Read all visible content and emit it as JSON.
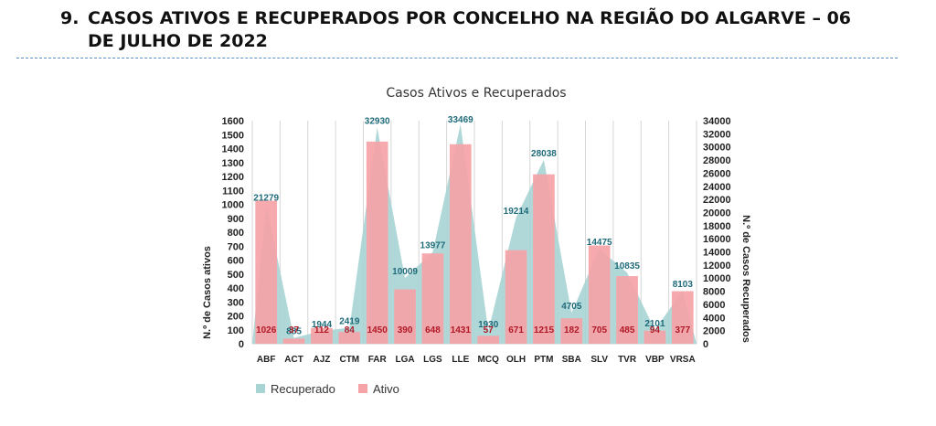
{
  "page": {
    "section_number": "9.",
    "heading_line1": "CASOS ATIVOS E RECUPERADOS POR CONCELHO NA REGIÃO DO ALGARVE – 06",
    "heading_line2": "DE JULHO DE 2022"
  },
  "chart_data": {
    "type": "bar",
    "title": "Casos Ativos e Recuperados",
    "categories": [
      "ABF",
      "ACT",
      "AJZ",
      "CTM",
      "FAR",
      "LGA",
      "LGS",
      "LLE",
      "MCQ",
      "OLH",
      "PTM",
      "SBA",
      "SLV",
      "TVR",
      "VBP",
      "VRSA"
    ],
    "series": [
      {
        "name": "Recuperado",
        "kind": "area",
        "axis": "right",
        "color": "#a9d4d4",
        "values": [
          21279,
          885,
          1944,
          2419,
          32930,
          10009,
          13977,
          33469,
          1930,
          19214,
          28038,
          4705,
          14475,
          10835,
          2101,
          8103
        ]
      },
      {
        "name": "Ativo",
        "kind": "bar",
        "axis": "left",
        "color": "#f5a3a7",
        "values": [
          1026,
          37,
          112,
          84,
          1450,
          390,
          648,
          1431,
          57,
          671,
          1215,
          182,
          705,
          485,
          94,
          377
        ]
      }
    ],
    "ylabel": "N.º de Casos ativos",
    "ylabel_right": "N.º de Casos Recuperados",
    "ylim": [
      0,
      1600
    ],
    "yticks": [
      0,
      100,
      200,
      300,
      400,
      500,
      600,
      700,
      800,
      900,
      1000,
      1100,
      1200,
      1300,
      1400,
      1500,
      1600
    ],
    "ylim_right": [
      0,
      34000
    ],
    "yticks_right": [
      0,
      2000,
      4000,
      6000,
      8000,
      10000,
      12000,
      14000,
      16000,
      18000,
      20000,
      22000,
      24000,
      26000,
      28000,
      30000,
      32000,
      34000
    ],
    "grid": "vertical",
    "legend": "bottom-left"
  }
}
